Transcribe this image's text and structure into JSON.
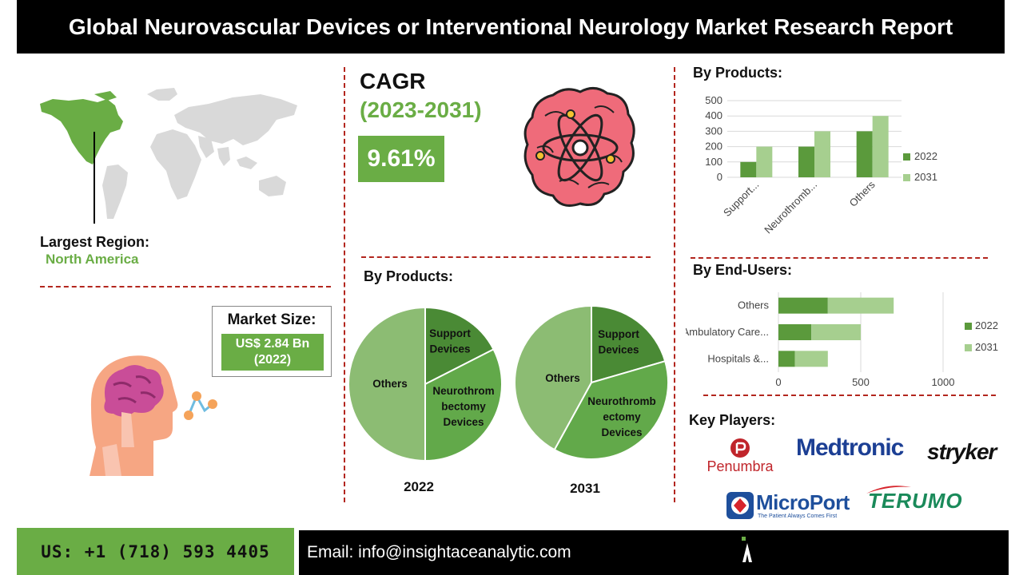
{
  "title": "Global Neurovascular Devices or Interventional Neurology Market Research Report",
  "region": {
    "label": "Largest Region:",
    "value": "North America"
  },
  "cagr": {
    "label": "CAGR",
    "years": "(2023-2031)",
    "value": "9.61%"
  },
  "market_size": {
    "label": "Market Size:",
    "value_line1": "US$ 2.84 Bn",
    "value_line2": "(2022)"
  },
  "sections": {
    "by_products_left": "By Products:",
    "by_products_right": "By Products:",
    "by_end_users": "By End-Users:",
    "key_players": "Key Players:"
  },
  "key_players": [
    "Penumbra",
    "Medtronic",
    "stryker",
    "MicroPort",
    "The Patient Always Comes First",
    "TERUMO"
  ],
  "footer": {
    "phone": "US: +1 (718) 593 4405",
    "email": "Email: info@insightaceanalytic.com"
  },
  "colors": {
    "dark_green": "#5b9a3c",
    "light_green": "#a6cf8f",
    "mid_green": "#6aad45",
    "pie_light": "#8cbc73",
    "pie_dark": "#4a8a35",
    "pie_mid": "#62a94a",
    "accent_red": "#b3261e"
  },
  "chart_data": [
    {
      "type": "bar",
      "title": "By Products:",
      "categories": [
        "Support...",
        "Neurothromb...",
        "Others"
      ],
      "series": [
        {
          "name": "2022",
          "values": [
            100,
            200,
            300
          ]
        },
        {
          "name": "2031",
          "values": [
            200,
            300,
            400
          ]
        }
      ],
      "ylim": [
        0,
        500
      ],
      "yticks": [
        0,
        100,
        200,
        300,
        400,
        500
      ],
      "grid": true,
      "legend": "right"
    },
    {
      "type": "bar",
      "orientation": "horizontal-stacked",
      "title": "By End-Users:",
      "categories": [
        "Others",
        "Ambulatory Care...",
        "Hospitals &..."
      ],
      "series": [
        {
          "name": "2022",
          "values": [
            300,
            200,
            100
          ]
        },
        {
          "name": "2031",
          "values": [
            400,
            300,
            200
          ]
        }
      ],
      "xlim": [
        0,
        1000
      ],
      "xticks": [
        0,
        500,
        1000
      ],
      "grid": true,
      "legend": "right"
    },
    {
      "type": "pie",
      "title": "By Products:",
      "year": "2022",
      "slices": [
        {
          "label_lines": [
            "Support",
            "Devices"
          ],
          "value": 17.5
        },
        {
          "label_lines": [
            "Neurothrom",
            "bectomy",
            "Devices"
          ],
          "value": 32.5
        },
        {
          "label_lines": [
            "Others"
          ],
          "value": 50
        }
      ]
    },
    {
      "type": "pie",
      "title": "By Products:",
      "year": "2031",
      "slices": [
        {
          "label_lines": [
            "Support",
            "Devices"
          ],
          "value": 20.5
        },
        {
          "label_lines": [
            "Neurothromb",
            "ectomy",
            "Devices"
          ],
          "value": 37.5
        },
        {
          "label_lines": [
            "Others"
          ],
          "value": 42
        }
      ]
    }
  ]
}
